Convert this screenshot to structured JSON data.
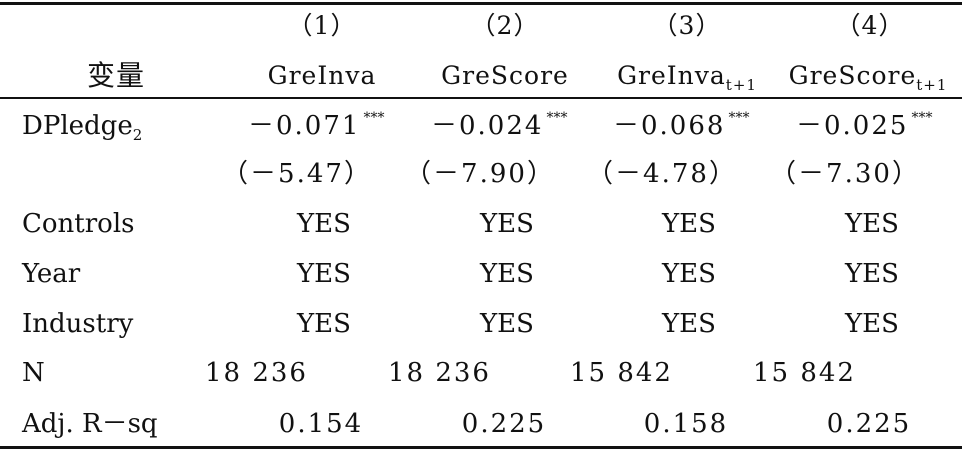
{
  "table": {
    "col_numbers": [
      "（1）",
      "（2）",
      "（3）",
      "（4）"
    ],
    "var_header": "变量",
    "col_headers": [
      {
        "main": "GreInva",
        "sub": ""
      },
      {
        "main": "GreScore",
        "sub": ""
      },
      {
        "main": "GreInva",
        "sub": "t+1"
      },
      {
        "main": "GreScore",
        "sub": "t+1"
      }
    ],
    "rows": {
      "dpledge": {
        "label_main": "DPledge",
        "label_sub": "2",
        "coefs": [
          "－0.071",
          "－0.024",
          "－0.068",
          "－0.025"
        ],
        "stars": [
          "***",
          "***",
          "***",
          "***"
        ]
      },
      "tstats": [
        "（－5.47）",
        "（－7.90）",
        "（－4.78）",
        "（－7.30）"
      ],
      "controls": {
        "label": "Controls",
        "values": [
          "YES",
          "YES",
          "YES",
          "YES"
        ]
      },
      "year": {
        "label": "Year",
        "values": [
          "YES",
          "YES",
          "YES",
          "YES"
        ]
      },
      "industry": {
        "label": "Industry",
        "values": [
          "YES",
          "YES",
          "YES",
          "YES"
        ]
      },
      "n": {
        "label": "N",
        "values": [
          "18 236",
          "18 236",
          "15 842",
          "15 842"
        ]
      },
      "adjr2": {
        "label": "Adj. R－sq",
        "values": [
          "0.154",
          "0.225",
          "0.158",
          "0.225"
        ]
      }
    }
  }
}
